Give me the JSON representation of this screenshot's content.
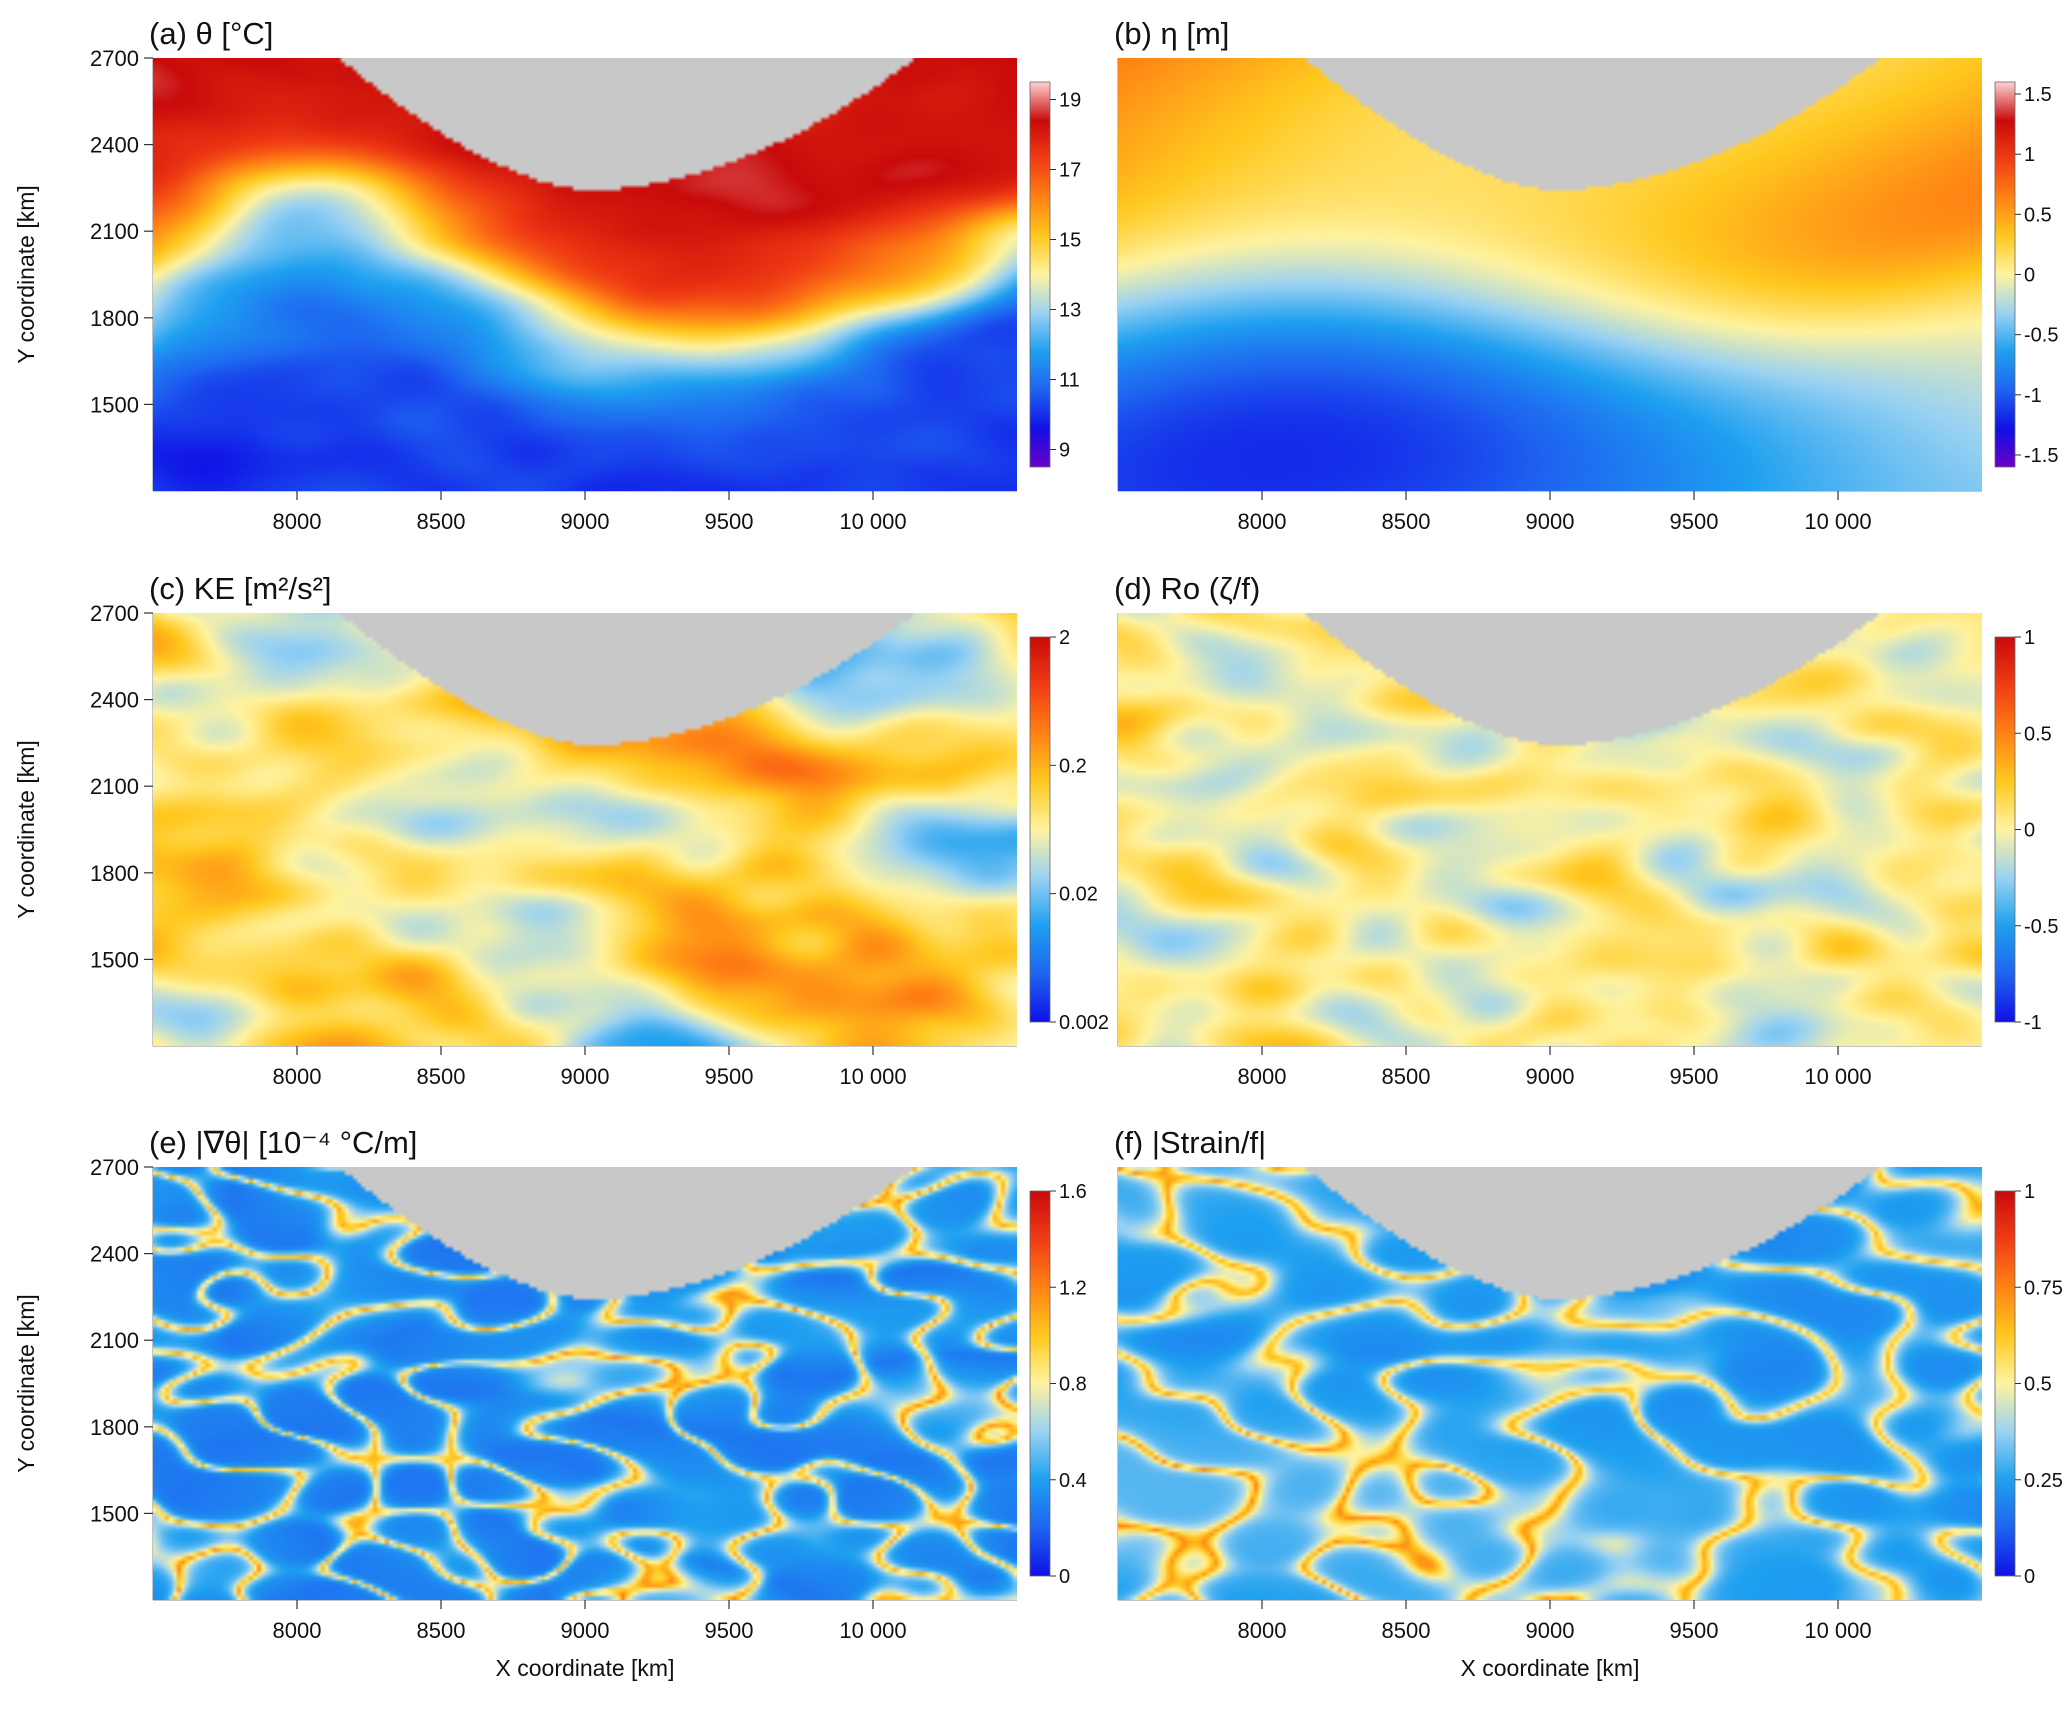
{
  "figure": {
    "x_axis_label": "X coordinate [km]",
    "y_axis_label": "Y coordinate [km]",
    "land_color": "#c8c8c8"
  },
  "chart_data": [
    {
      "type": "heatmap",
      "id": "a",
      "title": "(a) θ [°C]",
      "xlabel": "",
      "ylabel": "Y coordinate [km]",
      "x_ticks": [
        "8000",
        "8500",
        "9000",
        "9500",
        "10 000"
      ],
      "x_tick_values": [
        8000,
        8500,
        9000,
        9500,
        10000
      ],
      "y_ticks": [
        "1500",
        "1800",
        "2100",
        "2400",
        "2700"
      ],
      "y_tick_values": [
        1500,
        1800,
        2100,
        2400,
        2700
      ],
      "xlim": [
        7500,
        10500
      ],
      "ylim": [
        1200,
        2700
      ],
      "colorbar": {
        "ticks": [
          "9",
          "11",
          "13",
          "15",
          "17",
          "19"
        ],
        "values": [
          9,
          11,
          13,
          15,
          17,
          19
        ],
        "range": [
          8.5,
          19.5
        ],
        "scale": "linear"
      },
      "colormap": [
        "#6a00c8",
        "#1010e6",
        "#1e64f0",
        "#1ea0f0",
        "#9ad2f2",
        "#fff3a0",
        "#ffc81e",
        "#ff8214",
        "#f03c14",
        "#c80a0a",
        "#ffd2d2"
      ],
      "field": "temperature"
    },
    {
      "type": "heatmap",
      "id": "b",
      "title": "(b) η [m]",
      "xlabel": "",
      "ylabel": "",
      "x_ticks": [
        "8000",
        "8500",
        "9000",
        "9500",
        "10 000"
      ],
      "x_tick_values": [
        8000,
        8500,
        9000,
        9500,
        10000
      ],
      "y_ticks": [],
      "y_tick_values": [],
      "xlim": [
        7500,
        10500
      ],
      "ylim": [
        1200,
        2700
      ],
      "colorbar": {
        "ticks": [
          "-1.5",
          "-1",
          "-0.5",
          "0",
          "0.5",
          "1",
          "1.5"
        ],
        "values": [
          -1.5,
          -1,
          -0.5,
          0,
          0.5,
          1,
          1.5
        ],
        "range": [
          -1.6,
          1.6
        ],
        "scale": "linear"
      },
      "colormap": [
        "#6a00c8",
        "#1010e6",
        "#1e64f0",
        "#1ea0f0",
        "#9ad2f2",
        "#fff3a0",
        "#ffc81e",
        "#ff8214",
        "#f03c14",
        "#c80a0a",
        "#ffd2d2"
      ],
      "field": "ssh"
    },
    {
      "type": "heatmap",
      "id": "c",
      "title": "(c) KE [m²/s²]",
      "xlabel": "",
      "ylabel": "Y coordinate [km]",
      "x_ticks": [
        "8000",
        "8500",
        "9000",
        "9500",
        "10 000"
      ],
      "x_tick_values": [
        8000,
        8500,
        9000,
        9500,
        10000
      ],
      "y_ticks": [
        "1500",
        "1800",
        "2100",
        "2400",
        "2700"
      ],
      "y_tick_values": [
        1500,
        1800,
        2100,
        2400,
        2700
      ],
      "xlim": [
        7500,
        10500
      ],
      "ylim": [
        1200,
        2700
      ],
      "colorbar": {
        "ticks": [
          "0.002",
          "0.02",
          "0.2",
          "2"
        ],
        "values": [
          0.002,
          0.02,
          0.2,
          2
        ],
        "range": [
          0.002,
          2
        ],
        "scale": "log"
      },
      "colormap": [
        "#1010e6",
        "#1e64f0",
        "#1ea0f0",
        "#9ad2f2",
        "#fff3a0",
        "#ffc81e",
        "#ff8214",
        "#f03c14",
        "#c80a0a"
      ],
      "field": "ke"
    },
    {
      "type": "heatmap",
      "id": "d",
      "title": "(d) Ro (ζ/f)",
      "xlabel": "",
      "ylabel": "",
      "x_ticks": [
        "8000",
        "8500",
        "9000",
        "9500",
        "10 000"
      ],
      "x_tick_values": [
        8000,
        8500,
        9000,
        9500,
        10000
      ],
      "y_ticks": [],
      "y_tick_values": [],
      "xlim": [
        7500,
        10500
      ],
      "ylim": [
        1200,
        2700
      ],
      "colorbar": {
        "ticks": [
          "-1",
          "-0.5",
          "0",
          "0.5",
          "1"
        ],
        "values": [
          -1,
          -0.5,
          0,
          0.5,
          1
        ],
        "range": [
          -1,
          1
        ],
        "scale": "linear"
      },
      "colormap": [
        "#1010e6",
        "#1e64f0",
        "#1ea0f0",
        "#9ad2f2",
        "#fff3a0",
        "#ffc81e",
        "#ff8214",
        "#f03c14",
        "#c80a0a"
      ],
      "field": "vorticity"
    },
    {
      "type": "heatmap",
      "id": "e",
      "title": "(e) |∇θ| [10⁻⁴ °C/m]",
      "xlabel": "X coordinate [km]",
      "ylabel": "Y coordinate [km]",
      "x_ticks": [
        "8000",
        "8500",
        "9000",
        "9500",
        "10 000"
      ],
      "x_tick_values": [
        8000,
        8500,
        9000,
        9500,
        10000
      ],
      "y_ticks": [
        "1500",
        "1800",
        "2100",
        "2400",
        "2700"
      ],
      "y_tick_values": [
        1500,
        1800,
        2100,
        2400,
        2700
      ],
      "xlim": [
        7500,
        10500
      ],
      "ylim": [
        1200,
        2700
      ],
      "colorbar": {
        "ticks": [
          "0",
          "0.4",
          "0.8",
          "1.2",
          "1.6"
        ],
        "values": [
          0,
          0.4,
          0.8,
          1.2,
          1.6
        ],
        "range": [
          0,
          1.6
        ],
        "scale": "linear"
      },
      "colormap": [
        "#1010e6",
        "#1e64f0",
        "#1ea0f0",
        "#9ad2f2",
        "#fff3a0",
        "#ffc81e",
        "#ff8214",
        "#f03c14",
        "#c80a0a"
      ],
      "field": "gradient"
    },
    {
      "type": "heatmap",
      "id": "f",
      "title": "(f) |Strain/f|",
      "xlabel": "X coordinate [km]",
      "ylabel": "",
      "x_ticks": [
        "8000",
        "8500",
        "9000",
        "9500",
        "10 000"
      ],
      "x_tick_values": [
        8000,
        8500,
        9000,
        9500,
        10000
      ],
      "y_ticks": [],
      "y_tick_values": [],
      "xlim": [
        7500,
        10500
      ],
      "ylim": [
        1200,
        2700
      ],
      "colorbar": {
        "ticks": [
          "0",
          "0.25",
          "0.5",
          "0.75",
          "1"
        ],
        "values": [
          0,
          0.25,
          0.5,
          0.75,
          1
        ],
        "range": [
          0,
          1
        ],
        "scale": "linear"
      },
      "colormap": [
        "#1010e6",
        "#1e64f0",
        "#1ea0f0",
        "#9ad2f2",
        "#fff3a0",
        "#ffc81e",
        "#ff8214",
        "#f03c14",
        "#c80a0a"
      ],
      "field": "strain"
    }
  ]
}
